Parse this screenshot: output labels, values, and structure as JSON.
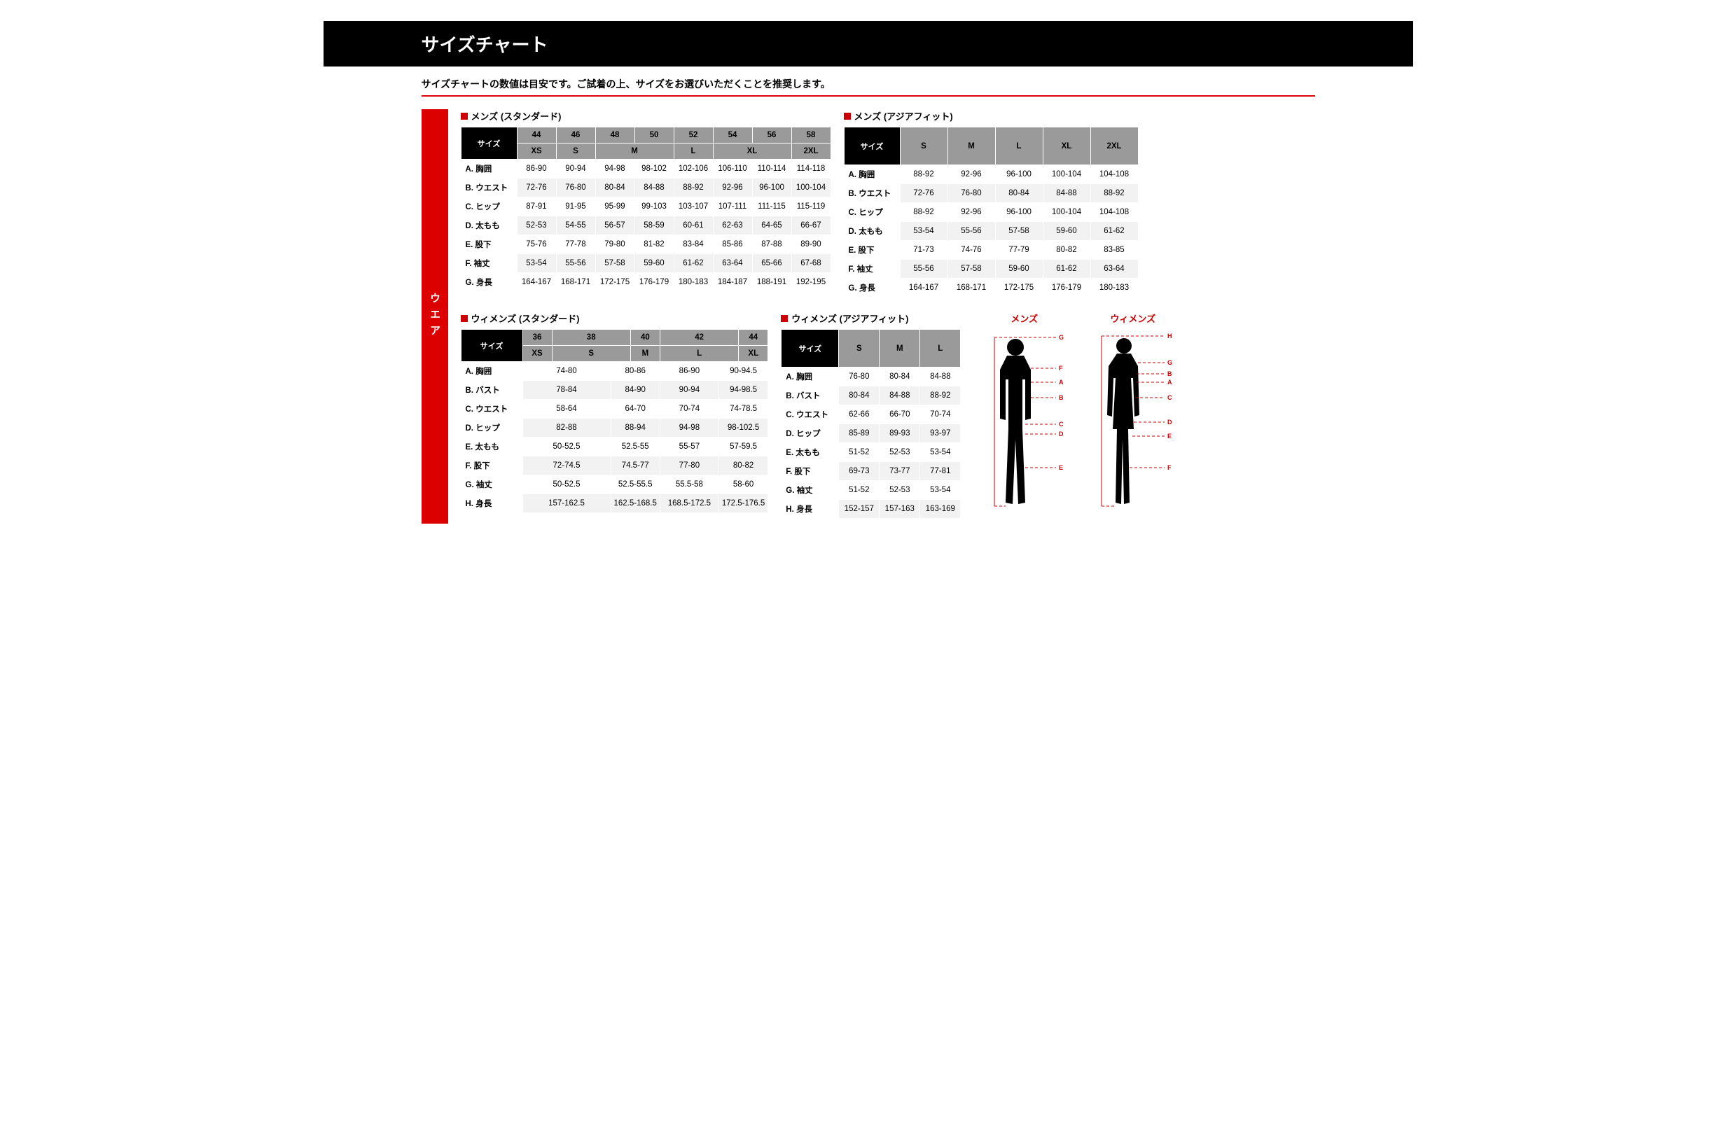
{
  "banner_title": "サイズチャート",
  "subtitle": "サイズチャートの数値は目安です。ご試着の上、サイズをお選びいただくことを推奨します。",
  "vtab_label": "ウエア",
  "colors": {
    "accent": "#c00",
    "dark": "#000",
    "grey": "#9a9a9a",
    "zebra": "#f2f2f2"
  },
  "mens_std": {
    "title": "メンズ (スタンダード)",
    "size_label": "サイズ",
    "num_sizes": [
      "44",
      "46",
      "48",
      "50",
      "52",
      "54",
      "56",
      "58"
    ],
    "alpha_sizes": [
      {
        "label": "XS",
        "span": 1
      },
      {
        "label": "S",
        "span": 1
      },
      {
        "label": "M",
        "span": 2
      },
      {
        "label": "L",
        "span": 1
      },
      {
        "label": "XL",
        "span": 2
      },
      {
        "label": "2XL",
        "span": 1
      }
    ],
    "rows": [
      {
        "label": "A. 胸囲",
        "vals": [
          "86-90",
          "90-94",
          "94-98",
          "98-102",
          "102-106",
          "106-110",
          "110-114",
          "114-118"
        ]
      },
      {
        "label": "B. ウエスト",
        "vals": [
          "72-76",
          "76-80",
          "80-84",
          "84-88",
          "88-92",
          "92-96",
          "96-100",
          "100-104"
        ]
      },
      {
        "label": "C. ヒップ",
        "vals": [
          "87-91",
          "91-95",
          "95-99",
          "99-103",
          "103-107",
          "107-111",
          "111-115",
          "115-119"
        ]
      },
      {
        "label": "D. 太もも",
        "vals": [
          "52-53",
          "54-55",
          "56-57",
          "58-59",
          "60-61",
          "62-63",
          "64-65",
          "66-67"
        ]
      },
      {
        "label": "E. 股下",
        "vals": [
          "75-76",
          "77-78",
          "79-80",
          "81-82",
          "83-84",
          "85-86",
          "87-88",
          "89-90"
        ]
      },
      {
        "label": "F. 袖丈",
        "vals": [
          "53-54",
          "55-56",
          "57-58",
          "59-60",
          "61-62",
          "63-64",
          "65-66",
          "67-68"
        ]
      },
      {
        "label": "G. 身長",
        "vals": [
          "164-167",
          "168-171",
          "172-175",
          "176-179",
          "180-183",
          "184-187",
          "188-191",
          "192-195"
        ]
      }
    ]
  },
  "mens_asia": {
    "title": "メンズ (アジアフィット)",
    "size_label": "サイズ",
    "sizes": [
      "S",
      "M",
      "L",
      "XL",
      "2XL"
    ],
    "rows": [
      {
        "label": "A. 胸囲",
        "vals": [
          "88-92",
          "92-96",
          "96-100",
          "100-104",
          "104-108"
        ]
      },
      {
        "label": "B. ウエスト",
        "vals": [
          "72-76",
          "76-80",
          "80-84",
          "84-88",
          "88-92"
        ]
      },
      {
        "label": "C. ヒップ",
        "vals": [
          "88-92",
          "92-96",
          "96-100",
          "100-104",
          "104-108"
        ]
      },
      {
        "label": "D. 太もも",
        "vals": [
          "53-54",
          "55-56",
          "57-58",
          "59-60",
          "61-62"
        ]
      },
      {
        "label": "E. 股下",
        "vals": [
          "71-73",
          "74-76",
          "77-79",
          "80-82",
          "83-85"
        ]
      },
      {
        "label": "F. 袖丈",
        "vals": [
          "55-56",
          "57-58",
          "59-60",
          "61-62",
          "63-64"
        ]
      },
      {
        "label": "G. 身長",
        "vals": [
          "164-167",
          "168-171",
          "172-175",
          "176-179",
          "180-183"
        ]
      }
    ]
  },
  "womens_std": {
    "title": "ウィメンズ (スタンダード)",
    "size_label": "サイズ",
    "num_sizes": [
      "36",
      "38",
      "40",
      "42",
      "44"
    ],
    "num_spans": [
      1,
      2,
      1,
      2,
      1
    ],
    "alpha_sizes": [
      "XS",
      "S",
      "M",
      "L",
      "XL"
    ],
    "val_spans": [
      2,
      2,
      1,
      2
    ],
    "rows": [
      {
        "label": "A. 胸囲",
        "vals": [
          "74-80",
          "80-86",
          "86-90",
          "90-94.5"
        ]
      },
      {
        "label": "B. バスト",
        "vals": [
          "78-84",
          "84-90",
          "90-94",
          "94-98.5"
        ]
      },
      {
        "label": "C. ウエスト",
        "vals": [
          "58-64",
          "64-70",
          "70-74",
          "74-78.5"
        ]
      },
      {
        "label": "D. ヒップ",
        "vals": [
          "82-88",
          "88-94",
          "94-98",
          "98-102.5"
        ]
      },
      {
        "label": "E. 太もも",
        "vals": [
          "50-52.5",
          "52.5-55",
          "55-57",
          "57-59.5"
        ]
      },
      {
        "label": "F. 股下",
        "vals": [
          "72-74.5",
          "74.5-77",
          "77-80",
          "80-82"
        ]
      },
      {
        "label": "G. 袖丈",
        "vals": [
          "50-52.5",
          "52.5-55.5",
          "55.5-58",
          "58-60"
        ]
      },
      {
        "label": "H. 身長",
        "vals": [
          "157-162.5",
          "162.5-168.5",
          "168.5-172.5",
          "172.5-176.5"
        ]
      }
    ]
  },
  "womens_asia": {
    "title": "ウィメンズ (アジアフィット)",
    "size_label": "サイズ",
    "sizes": [
      "S",
      "M",
      "L"
    ],
    "rows": [
      {
        "label": "A. 胸囲",
        "vals": [
          "76-80",
          "80-84",
          "84-88"
        ]
      },
      {
        "label": "B. バスト",
        "vals": [
          "80-84",
          "84-88",
          "88-92"
        ]
      },
      {
        "label": "C. ウエスト",
        "vals": [
          "62-66",
          "66-70",
          "70-74"
        ]
      },
      {
        "label": "D. ヒップ",
        "vals": [
          "85-89",
          "89-93",
          "93-97"
        ]
      },
      {
        "label": "E. 太もも",
        "vals": [
          "51-52",
          "52-53",
          "53-54"
        ]
      },
      {
        "label": "F. 股下",
        "vals": [
          "69-73",
          "73-77",
          "77-81"
        ]
      },
      {
        "label": "G. 袖丈",
        "vals": [
          "51-52",
          "52-53",
          "53-54"
        ]
      },
      {
        "label": "H. 身長",
        "vals": [
          "152-157",
          "157-163",
          "163-169"
        ]
      }
    ]
  },
  "diagrams": {
    "mens_label": "メンズ",
    "womens_label": "ウィメンズ",
    "mens_marks": [
      "G",
      "F",
      "A",
      "B",
      "C",
      "D",
      "E"
    ],
    "womens_marks": [
      "H",
      "G",
      "B",
      "A",
      "C",
      "D",
      "E",
      "F"
    ]
  }
}
